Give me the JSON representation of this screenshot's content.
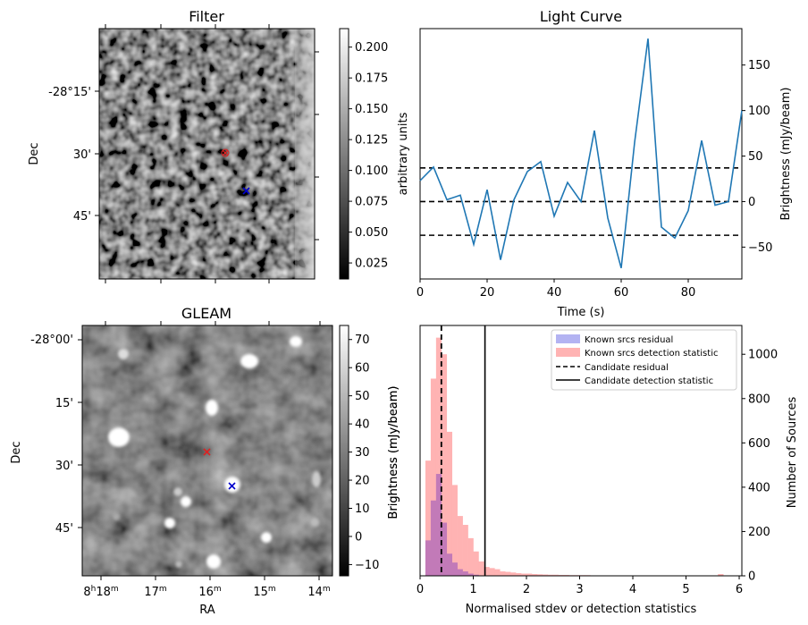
{
  "colors": {
    "line": "#1f77b4",
    "known_residual": "#b3b3f2",
    "known_detect": "#ffb3b3",
    "overlap": "#c27ab8",
    "marker_red": "#dd2222",
    "marker_blue": "#0000cc",
    "dashed": "#000000"
  },
  "chart_data": [
    {
      "id": "filter",
      "type": "image",
      "title": "Filter",
      "xlabel": "",
      "ylabel": "Dec",
      "yticks": [
        "-28°15'",
        "30'",
        "45'"
      ],
      "colorbar": {
        "label": "arbitrary units",
        "range": [
          0.012,
          0.215
        ],
        "ticks": [
          "0.025",
          "0.050",
          "0.075",
          "0.100",
          "0.125",
          "0.150",
          "0.175",
          "0.200"
        ],
        "tick_values": [
          0.025,
          0.05,
          0.075,
          0.1,
          0.125,
          0.15,
          0.175,
          0.2
        ]
      },
      "markers": [
        {
          "symbol": "x",
          "color": "red"
        },
        {
          "symbol": "x",
          "color": "blue"
        }
      ]
    },
    {
      "id": "gleam",
      "type": "image",
      "title": "GLEAM",
      "xlabel": "RA",
      "ylabel": "Dec",
      "yticks": [
        "-28°00'",
        "15'",
        "30'",
        "45'"
      ],
      "xticks": [
        {
          "h": "8",
          "hs": "h",
          "m": "18",
          "ms": "m"
        },
        {
          "h": "",
          "hs": "",
          "m": "17",
          "ms": "m"
        },
        {
          "h": "",
          "hs": "",
          "m": "16",
          "ms": "m"
        },
        {
          "h": "",
          "hs": "",
          "m": "15",
          "ms": "m"
        },
        {
          "h": "",
          "hs": "",
          "m": "14",
          "ms": "m"
        }
      ],
      "colorbar": {
        "label": "Brightness (mJy/beam)",
        "range": [
          -14,
          75
        ],
        "ticks": [
          "−10",
          "0",
          "10",
          "20",
          "30",
          "40",
          "50",
          "60",
          "70"
        ],
        "tick_values": [
          -10,
          0,
          10,
          20,
          30,
          40,
          50,
          60,
          70
        ]
      },
      "markers": [
        {
          "symbol": "x",
          "color": "red"
        },
        {
          "symbol": "x",
          "color": "blue"
        }
      ]
    },
    {
      "id": "lightcurve",
      "type": "line",
      "title": "Light Curve",
      "xlabel": "Time (s)",
      "ylabel": "Brightness (mJy/beam)",
      "xlim": [
        0,
        96
      ],
      "ylim": [
        -85,
        190
      ],
      "xticks": [
        0,
        20,
        40,
        60,
        80
      ],
      "yticks": [
        -50,
        0,
        50,
        100,
        150
      ],
      "x": [
        0,
        4,
        8,
        12,
        16,
        20,
        24,
        28,
        32,
        36,
        40,
        44,
        48,
        52,
        56,
        60,
        64,
        68,
        72,
        76,
        80,
        84,
        88,
        92,
        96
      ],
      "y": [
        23,
        38,
        2,
        7,
        -47,
        13,
        -64,
        2,
        33,
        44,
        -16,
        21,
        0,
        78,
        -18,
        -73,
        65,
        179,
        -28,
        -40,
        -10,
        67,
        -4,
        0,
        100
      ],
      "hlines": [
        37,
        0,
        -37
      ]
    },
    {
      "id": "histogram",
      "type": "histogram",
      "xlabel": "Normalised stdev or detection statistics",
      "ylabel_left": "Brightness (mJy/beam)",
      "ylabel_right": "Number of Sources",
      "xlim": [
        0,
        6.05
      ],
      "ylim": [
        0,
        1130
      ],
      "xticks": [
        0,
        1,
        2,
        3,
        4,
        5,
        6
      ],
      "yticks": [
        0,
        200,
        400,
        600,
        800,
        1000
      ],
      "bin_width": 0.1,
      "known_residual": [
        0,
        160,
        340,
        460,
        240,
        100,
        60,
        30,
        20,
        10,
        5
      ],
      "known_detection": [
        0,
        520,
        890,
        1075,
        1000,
        650,
        410,
        270,
        230,
        170,
        110,
        65,
        40,
        35,
        30,
        20,
        18,
        15,
        12,
        10,
        10,
        8,
        7,
        6,
        5,
        5,
        4,
        4,
        3,
        3,
        3,
        3,
        2,
        2,
        2,
        2,
        2,
        2,
        1,
        1,
        1,
        1,
        1,
        1,
        1,
        1,
        1,
        1,
        1,
        1,
        1,
        1,
        1,
        1,
        1,
        1,
        8,
        1,
        1,
        1
      ],
      "candidate_residual": 0.4,
      "candidate_detection": 1.22,
      "legend": [
        "Known srcs residual",
        "Known srcs detection statistic",
        "Candidate residual",
        "Candidate detection statistic"
      ]
    }
  ]
}
